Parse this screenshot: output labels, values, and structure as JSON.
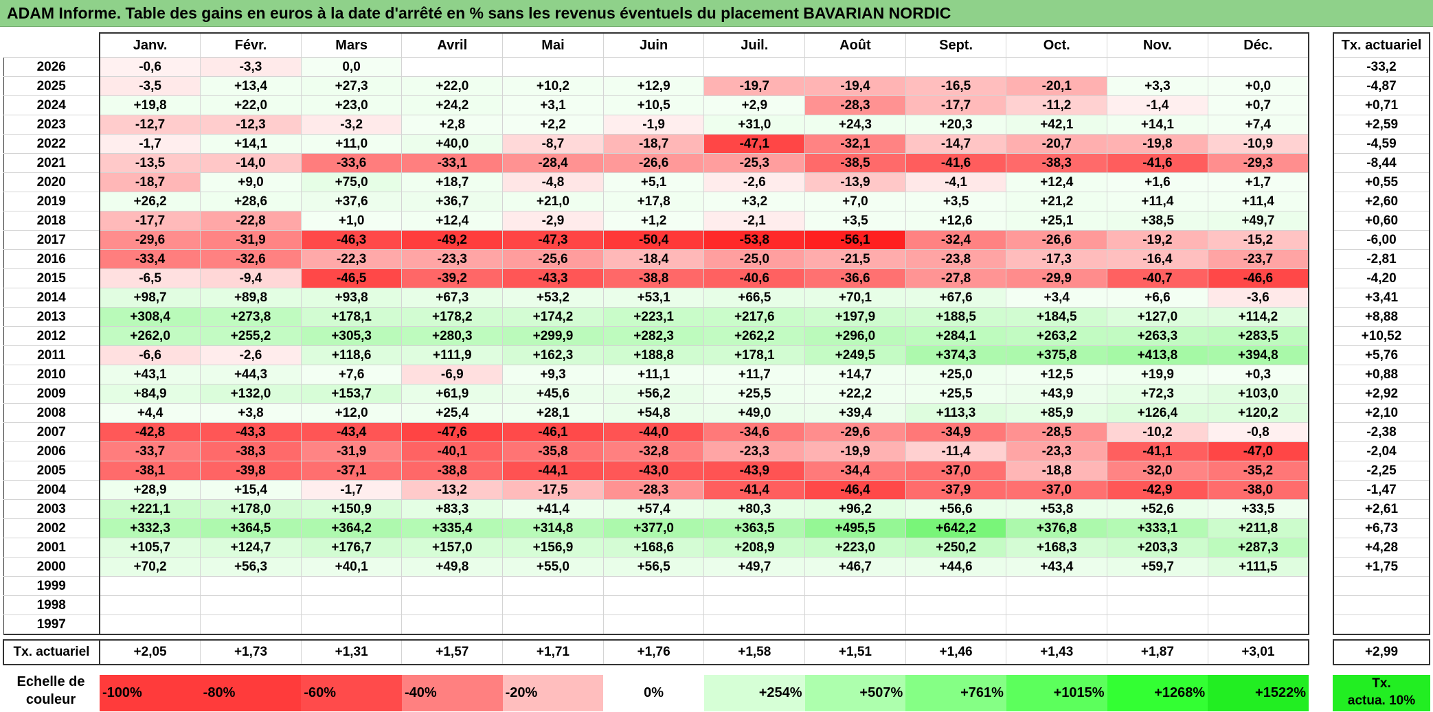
{
  "title": "ADAM Informe. Table des gains en euros à la date d'arrêté en % sans les revenus éventuels du placement BAVARIAN NORDIC",
  "colors": {
    "title_bg": "#8fd18a",
    "red_max": "#ff2020",
    "green_max": "#22ee22"
  },
  "chart_data": {
    "type": "table",
    "title": "ADAM Informe. Table des gains en euros à la date d'arrêté en % sans les revenus éventuels du placement BAVARIAN NORDIC",
    "columns": [
      "Janv.",
      "Févr.",
      "Mars",
      "Avril",
      "Mai",
      "Juin",
      "Juil.",
      "Août",
      "Sept.",
      "Oct.",
      "Nov.",
      "Déc."
    ],
    "actuarial_header": "Tx. actuariel",
    "rows": [
      {
        "year": "2026",
        "values": [
          "-0,6",
          "-3,3",
          "0,0",
          "",
          "",
          "",
          "",
          "",
          "",
          "",
          "",
          ""
        ],
        "rate": "-33,2"
      },
      {
        "year": "2025",
        "values": [
          "-3,5",
          "+13,4",
          "+27,3",
          "+22,0",
          "+10,2",
          "+12,9",
          "-19,7",
          "-19,4",
          "-16,5",
          "-20,1",
          "+3,3",
          "+0,0"
        ],
        "rate": "-4,87"
      },
      {
        "year": "2024",
        "values": [
          "+19,8",
          "+22,0",
          "+23,0",
          "+24,2",
          "+3,1",
          "+10,5",
          "+2,9",
          "-28,3",
          "-17,7",
          "-11,2",
          "-1,4",
          "+0,7"
        ],
        "rate": "+0,71"
      },
      {
        "year": "2023",
        "values": [
          "-12,7",
          "-12,3",
          "-3,2",
          "+2,8",
          "+2,2",
          "-1,9",
          "+31,0",
          "+24,3",
          "+20,3",
          "+42,1",
          "+14,1",
          "+7,4"
        ],
        "rate": "+2,59"
      },
      {
        "year": "2022",
        "values": [
          "-1,7",
          "+14,1",
          "+11,0",
          "+40,0",
          "-8,7",
          "-18,7",
          "-47,1",
          "-32,1",
          "-14,7",
          "-20,7",
          "-19,8",
          "-10,9"
        ],
        "rate": "-4,59"
      },
      {
        "year": "2021",
        "values": [
          "-13,5",
          "-14,0",
          "-33,6",
          "-33,1",
          "-28,4",
          "-26,6",
          "-25,3",
          "-38,5",
          "-41,6",
          "-38,3",
          "-41,6",
          "-29,3"
        ],
        "rate": "-8,44"
      },
      {
        "year": "2020",
        "values": [
          "-18,7",
          "+9,0",
          "+75,0",
          "+18,7",
          "-4,8",
          "+5,1",
          "-2,6",
          "-13,9",
          "-4,1",
          "+12,4",
          "+1,6",
          "+1,7"
        ],
        "rate": "+0,55"
      },
      {
        "year": "2019",
        "values": [
          "+26,2",
          "+28,6",
          "+37,6",
          "+36,7",
          "+21,0",
          "+17,8",
          "+3,2",
          "+7,0",
          "+3,5",
          "+21,2",
          "+11,4",
          "+11,4"
        ],
        "rate": "+2,60"
      },
      {
        "year": "2018",
        "values": [
          "-17,7",
          "-22,8",
          "+1,0",
          "+12,4",
          "-2,9",
          "+1,2",
          "-2,1",
          "+3,5",
          "+12,6",
          "+25,1",
          "+38,5",
          "+49,7"
        ],
        "rate": "+0,60"
      },
      {
        "year": "2017",
        "values": [
          "-29,6",
          "-31,9",
          "-46,3",
          "-49,2",
          "-47,3",
          "-50,4",
          "-53,8",
          "-56,1",
          "-32,4",
          "-26,6",
          "-19,2",
          "-15,2"
        ],
        "rate": "-6,00"
      },
      {
        "year": "2016",
        "values": [
          "-33,4",
          "-32,6",
          "-22,3",
          "-23,3",
          "-25,6",
          "-18,4",
          "-25,0",
          "-21,5",
          "-23,8",
          "-17,3",
          "-16,4",
          "-23,7"
        ],
        "rate": "-2,81"
      },
      {
        "year": "2015",
        "values": [
          "-6,5",
          "-9,4",
          "-46,5",
          "-39,2",
          "-43,3",
          "-38,8",
          "-40,6",
          "-36,6",
          "-27,8",
          "-29,9",
          "-40,7",
          "-46,6"
        ],
        "rate": "-4,20"
      },
      {
        "year": "2014",
        "values": [
          "+98,7",
          "+89,8",
          "+93,8",
          "+67,3",
          "+53,2",
          "+53,1",
          "+66,5",
          "+70,1",
          "+67,6",
          "+3,4",
          "+6,6",
          "-3,6"
        ],
        "rate": "+3,41"
      },
      {
        "year": "2013",
        "values": [
          "+308,4",
          "+273,8",
          "+178,1",
          "+178,2",
          "+174,2",
          "+223,1",
          "+217,6",
          "+197,9",
          "+188,5",
          "+184,5",
          "+127,0",
          "+114,2"
        ],
        "rate": "+8,88"
      },
      {
        "year": "2012",
        "values": [
          "+262,0",
          "+255,2",
          "+305,3",
          "+280,3",
          "+299,9",
          "+282,3",
          "+262,2",
          "+296,0",
          "+284,1",
          "+263,2",
          "+263,3",
          "+283,5"
        ],
        "rate": "+10,52"
      },
      {
        "year": "2011",
        "values": [
          "-6,6",
          "-2,6",
          "+118,6",
          "+111,9",
          "+162,3",
          "+188,8",
          "+178,1",
          "+249,5",
          "+374,3",
          "+375,8",
          "+413,8",
          "+394,8"
        ],
        "rate": "+5,76"
      },
      {
        "year": "2010",
        "values": [
          "+43,1",
          "+44,3",
          "+7,6",
          "-6,9",
          "+9,3",
          "+11,1",
          "+11,7",
          "+14,7",
          "+25,0",
          "+12,5",
          "+19,9",
          "+0,3"
        ],
        "rate": "+0,88"
      },
      {
        "year": "2009",
        "values": [
          "+84,9",
          "+132,0",
          "+153,7",
          "+61,9",
          "+45,6",
          "+56,2",
          "+25,5",
          "+22,2",
          "+25,5",
          "+43,9",
          "+72,3",
          "+103,0"
        ],
        "rate": "+2,92"
      },
      {
        "year": "2008",
        "values": [
          "+4,4",
          "+3,8",
          "+12,0",
          "+25,4",
          "+28,1",
          "+54,8",
          "+49,0",
          "+39,4",
          "+113,3",
          "+85,9",
          "+126,4",
          "+120,2"
        ],
        "rate": "+2,10"
      },
      {
        "year": "2007",
        "values": [
          "-42,8",
          "-43,3",
          "-43,4",
          "-47,6",
          "-46,1",
          "-44,0",
          "-34,6",
          "-29,6",
          "-34,9",
          "-28,5",
          "-10,2",
          "-0,8"
        ],
        "rate": "-2,38"
      },
      {
        "year": "2006",
        "values": [
          "-33,7",
          "-38,3",
          "-31,9",
          "-40,1",
          "-35,8",
          "-32,8",
          "-23,3",
          "-19,9",
          "-11,4",
          "-23,3",
          "-41,1",
          "-47,0"
        ],
        "rate": "-2,04"
      },
      {
        "year": "2005",
        "values": [
          "-38,1",
          "-39,8",
          "-37,1",
          "-38,8",
          "-44,1",
          "-43,0",
          "-43,9",
          "-34,4",
          "-37,0",
          "-18,8",
          "-32,0",
          "-35,2"
        ],
        "rate": "-2,25"
      },
      {
        "year": "2004",
        "values": [
          "+28,9",
          "+15,4",
          "-1,7",
          "-13,2",
          "-17,5",
          "-28,3",
          "-41,4",
          "-46,4",
          "-37,9",
          "-37,0",
          "-42,9",
          "-38,0"
        ],
        "rate": "-1,47"
      },
      {
        "year": "2003",
        "values": [
          "+221,1",
          "+178,0",
          "+150,9",
          "+83,3",
          "+41,4",
          "+57,4",
          "+80,3",
          "+96,2",
          "+56,6",
          "+53,8",
          "+52,6",
          "+33,5"
        ],
        "rate": "+2,61"
      },
      {
        "year": "2002",
        "values": [
          "+332,3",
          "+364,5",
          "+364,2",
          "+335,4",
          "+314,8",
          "+377,0",
          "+363,5",
          "+495,5",
          "+642,2",
          "+376,8",
          "+333,1",
          "+211,8"
        ],
        "rate": "+6,73"
      },
      {
        "year": "2001",
        "values": [
          "+105,7",
          "+124,7",
          "+176,7",
          "+157,0",
          "+156,9",
          "+168,6",
          "+208,9",
          "+223,0",
          "+250,2",
          "+168,3",
          "+203,3",
          "+287,3"
        ],
        "rate": "+4,28"
      },
      {
        "year": "2000",
        "values": [
          "+70,2",
          "+56,3",
          "+40,1",
          "+49,8",
          "+55,0",
          "+56,5",
          "+49,7",
          "+46,7",
          "+44,6",
          "+43,4",
          "+59,7",
          "+111,5"
        ],
        "rate": "+1,75"
      },
      {
        "year": "1999",
        "values": [
          "",
          "",
          "",
          "",
          "",
          "",
          "",
          "",
          "",
          "",
          "",
          ""
        ],
        "rate": ""
      },
      {
        "year": "1998",
        "values": [
          "",
          "",
          "",
          "",
          "",
          "",
          "",
          "",
          "",
          "",
          "",
          ""
        ],
        "rate": ""
      },
      {
        "year": "1997",
        "values": [
          "",
          "",
          "",
          "",
          "",
          "",
          "",
          "",
          "",
          "",
          "",
          ""
        ],
        "rate": ""
      }
    ],
    "totals": {
      "label": "Tx. actuariel",
      "values": [
        "+2,05",
        "+1,73",
        "+1,31",
        "+1,57",
        "+1,71",
        "+1,76",
        "+1,58",
        "+1,51",
        "+1,46",
        "+1,43",
        "+1,87",
        "+3,01"
      ],
      "rate": "+2,99"
    },
    "scale": {
      "label_line1": "Echelle de",
      "label_line2": "couleur",
      "items": [
        {
          "text": "-100%",
          "color": "#ff3b3b",
          "align": "left"
        },
        {
          "text": "-80%",
          "color": "#ff3b3b",
          "align": "left"
        },
        {
          "text": "-60%",
          "color": "#ff4b4b",
          "align": "left"
        },
        {
          "text": "-40%",
          "color": "#ff8080",
          "align": "left"
        },
        {
          "text": "-20%",
          "color": "#ffbebe",
          "align": "left"
        },
        {
          "text": "0%",
          "color": "#ffffff",
          "align": "center"
        },
        {
          "text": "+254%",
          "color": "#d6ffd6",
          "align": "right"
        },
        {
          "text": "+507%",
          "color": "#adffad",
          "align": "right"
        },
        {
          "text": "+761%",
          "color": "#85ff85",
          "align": "right"
        },
        {
          "text": "+1015%",
          "color": "#5cff5c",
          "align": "right"
        },
        {
          "text": "+1268%",
          "color": "#33ff33",
          "align": "right"
        },
        {
          "text": "+1522%",
          "color": "#22ee22",
          "align": "right"
        }
      ],
      "act_line1": "Tx.",
      "act_line2": "actua. 10%"
    }
  }
}
